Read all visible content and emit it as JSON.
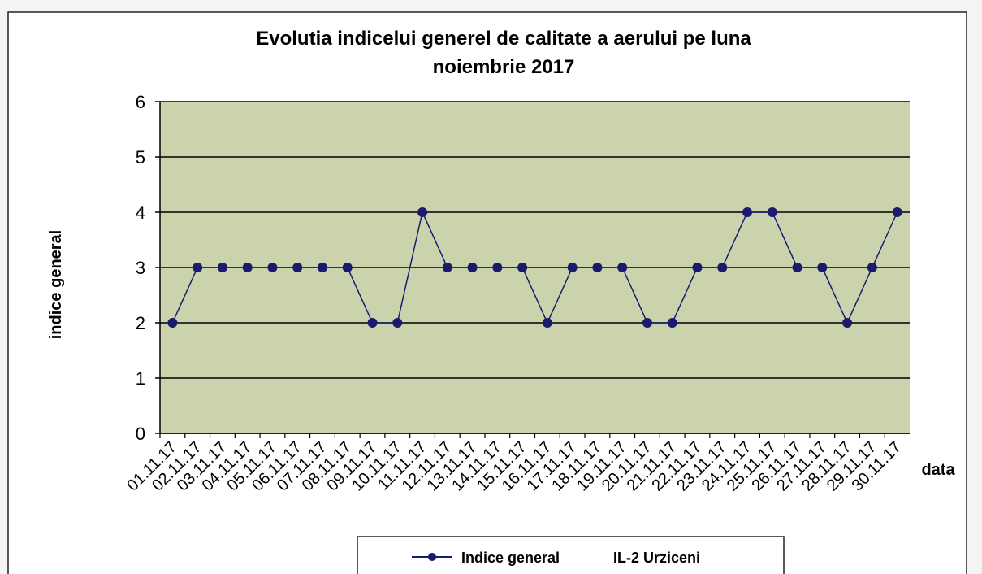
{
  "chart_data": {
    "type": "line",
    "title": "Evolutia indicelui  generel de calitate a aerului pe luna",
    "subtitle": "noiembrie 2017",
    "y_label": "indice general",
    "x_label": "data",
    "categories": [
      "01.11.17",
      "02.11.17",
      "03.11.17",
      "04.11.17",
      "05.11.17",
      "06.11.17",
      "07.11.17",
      "08.11.17",
      "09.11.17",
      "10.11.17",
      "11.11.17",
      "12.11.17",
      "13.11.17",
      "14.11.17",
      "15.11.17",
      "16.11.17",
      "17.11.17",
      "18.11.17",
      "19.11.17",
      "20.11.17",
      "21.11.17",
      "22.11.17",
      "23.11.17",
      "24.11.17",
      "25.11.17",
      "26.11.17",
      "27.11.17",
      "28.11.17",
      "29.11.17",
      "30.11.17"
    ],
    "series": [
      {
        "name": "Indice general",
        "color": "#1a1a6e",
        "values": [
          2,
          3,
          3,
          3,
          3,
          3,
          3,
          3,
          2,
          2,
          4,
          3,
          3,
          3,
          3,
          2,
          3,
          3,
          3,
          2,
          2,
          3,
          3,
          4,
          4,
          3,
          3,
          2,
          3,
          4
        ]
      }
    ],
    "legend_note": "IL-2 Urziceni",
    "ylim": [
      0,
      6
    ],
    "yticks": [
      0,
      1,
      2,
      3,
      4,
      5,
      6
    ],
    "grid": true,
    "plot_color": "#cbd3ad"
  }
}
